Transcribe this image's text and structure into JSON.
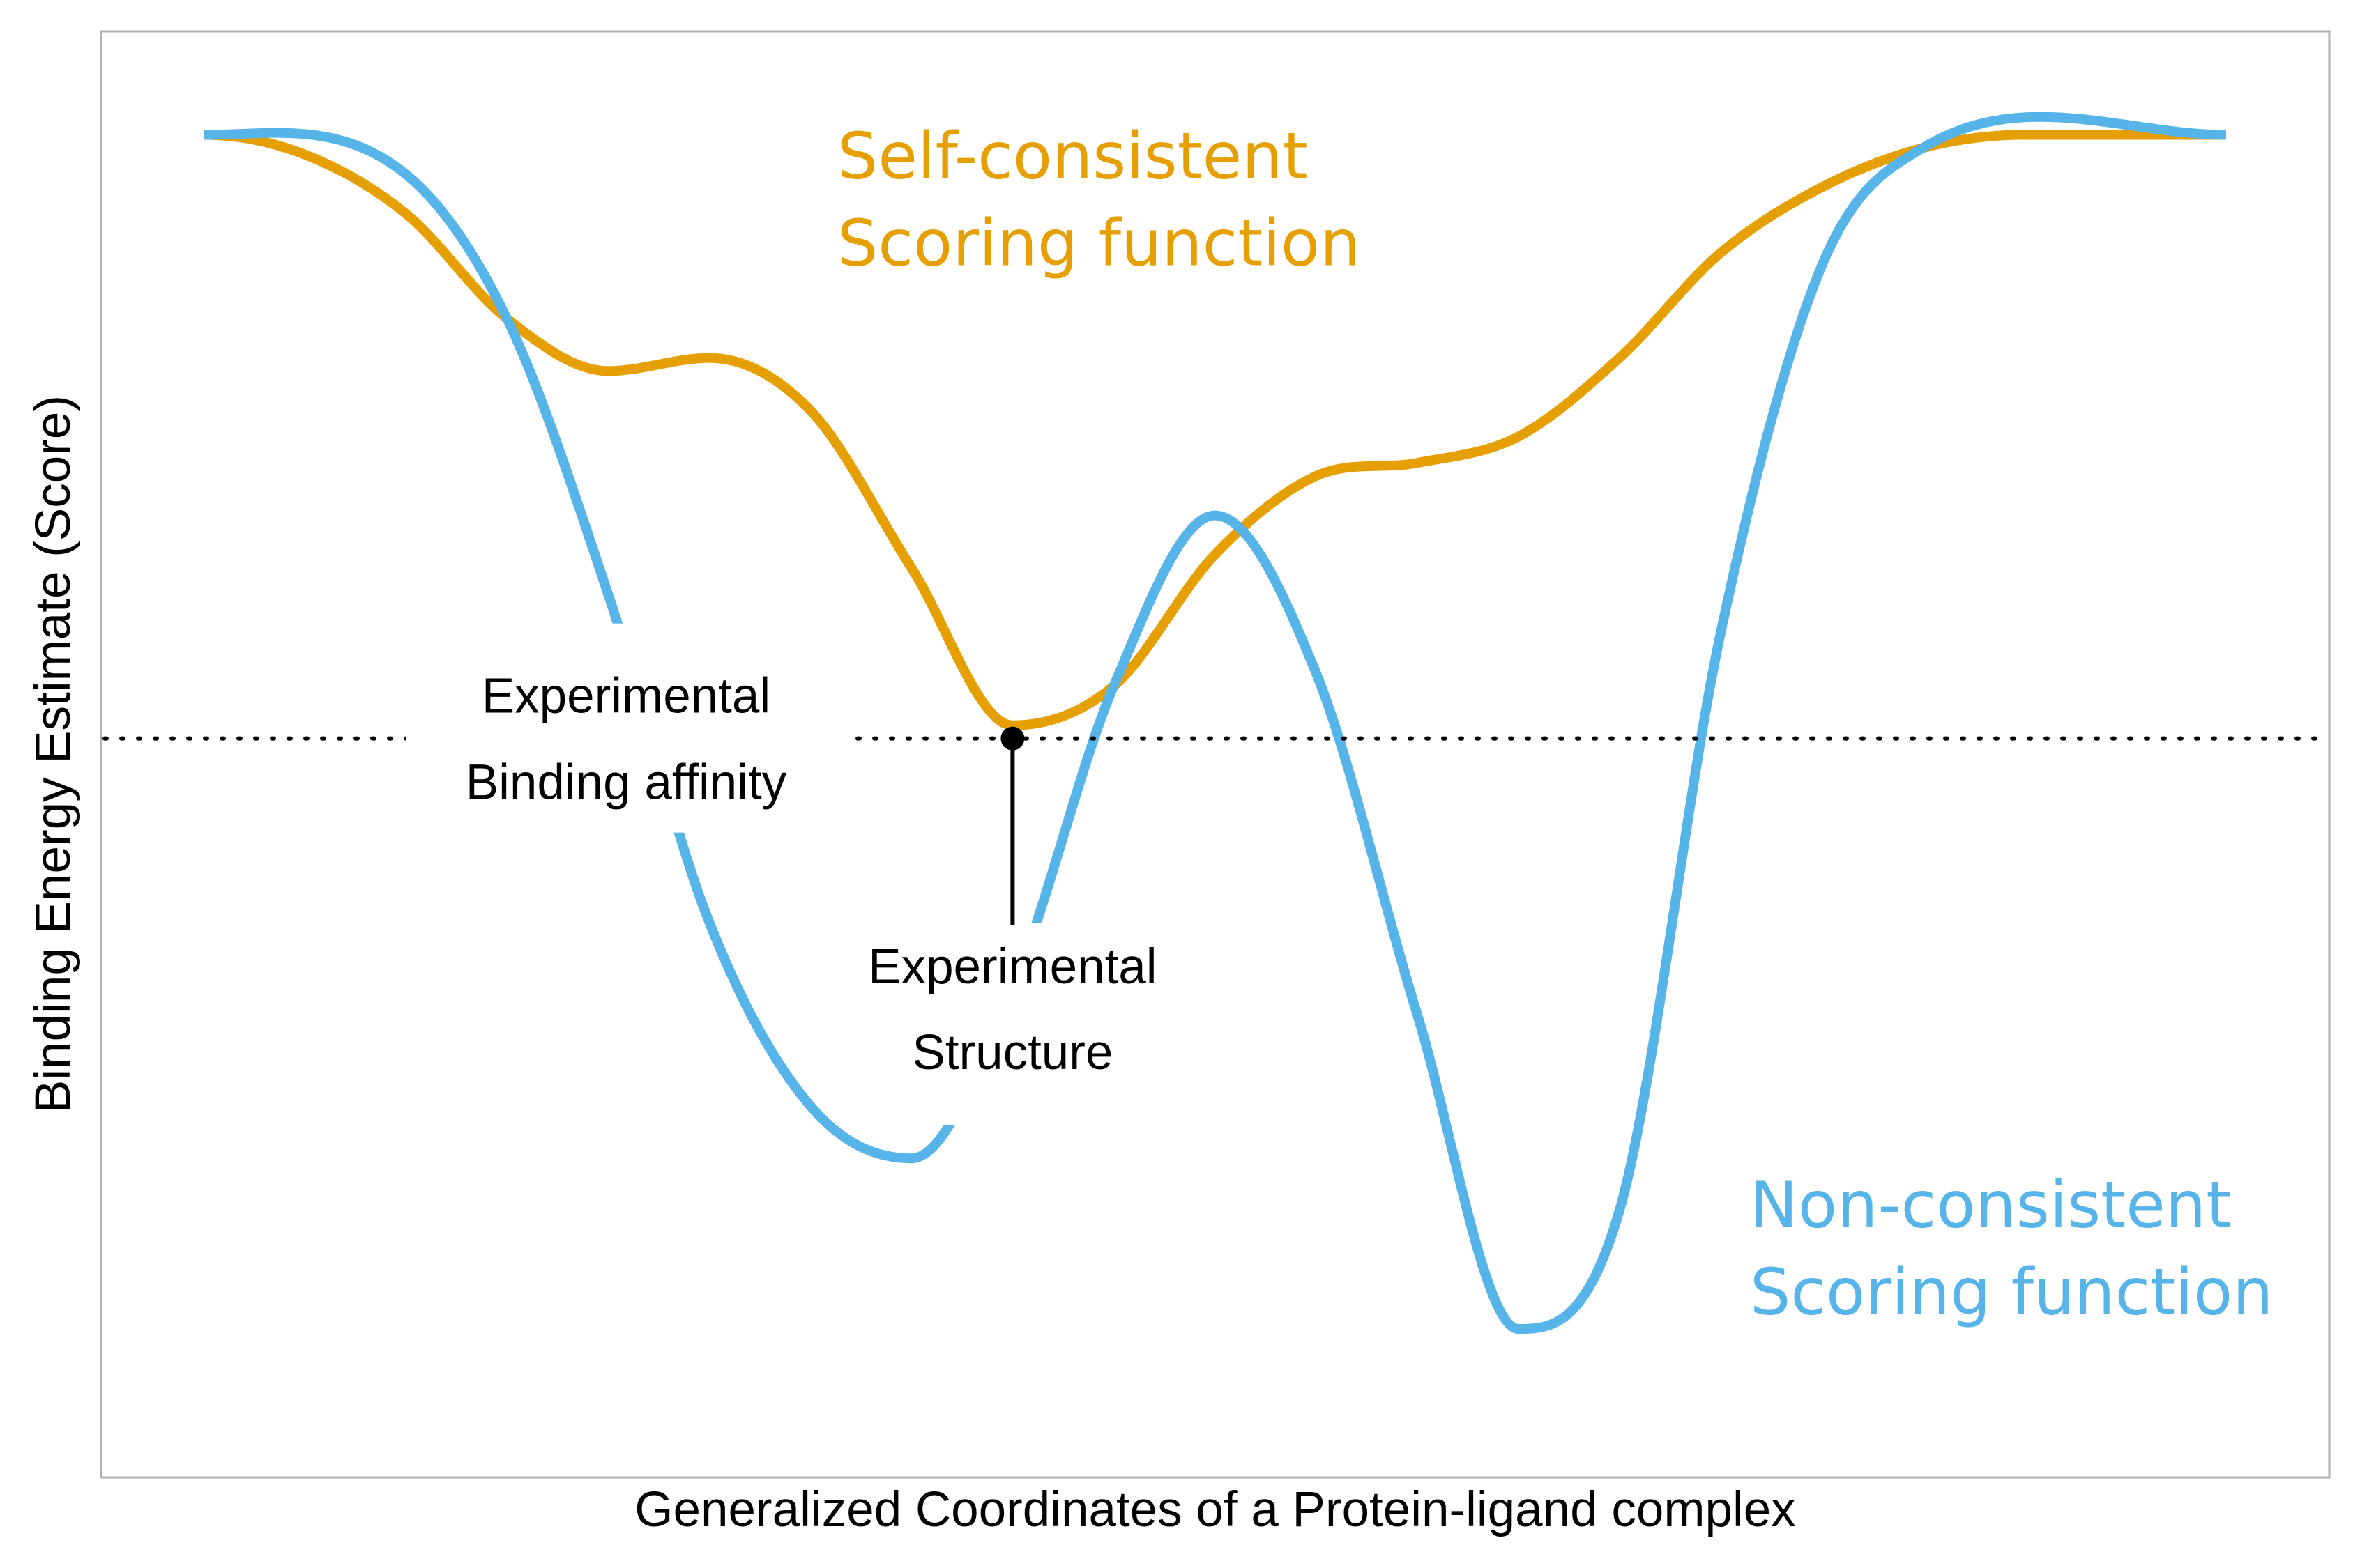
{
  "chart_data": {
    "type": "line",
    "title": "",
    "xlabel": "Generalized Coordinates of a Protein-ligand complex",
    "ylabel": "Binding Energy Estimate (Score)",
    "xlim": [
      0,
      1
    ],
    "ylim": [
      0,
      1
    ],
    "grid": false,
    "legend": "none",
    "series": [
      {
        "name": "Self-consistent Scoring function",
        "label_lines": [
          "Self-consistent",
          "Scoring function"
        ],
        "color": "#E69F00",
        "points": [
          [
            0.0,
            0.97
          ],
          [
            0.05,
            0.955
          ],
          [
            0.1,
            0.91
          ],
          [
            0.15,
            0.83
          ],
          [
            0.2,
            0.79
          ],
          [
            0.25,
            0.8
          ],
          [
            0.3,
            0.76
          ],
          [
            0.35,
            0.64
          ],
          [
            0.4,
            0.52
          ],
          [
            0.45,
            0.55
          ],
          [
            0.5,
            0.65
          ],
          [
            0.55,
            0.71
          ],
          [
            0.6,
            0.72
          ],
          [
            0.65,
            0.74
          ],
          [
            0.7,
            0.8
          ],
          [
            0.75,
            0.88
          ],
          [
            0.8,
            0.93
          ],
          [
            0.85,
            0.96
          ],
          [
            0.9,
            0.97
          ],
          [
            1.0,
            0.97
          ]
        ]
      },
      {
        "name": "Non-consistent Scoring function",
        "label_lines": [
          "Non-consistent",
          "Scoring function"
        ],
        "color": "#56B4E9",
        "points": [
          [
            0.0,
            0.97
          ],
          [
            0.1,
            0.94
          ],
          [
            0.15,
            0.83
          ],
          [
            0.2,
            0.62
          ],
          [
            0.25,
            0.37
          ],
          [
            0.3,
            0.23
          ],
          [
            0.35,
            0.19
          ],
          [
            0.4,
            0.32
          ],
          [
            0.45,
            0.55
          ],
          [
            0.5,
            0.68
          ],
          [
            0.55,
            0.56
          ],
          [
            0.6,
            0.3
          ],
          [
            0.65,
            0.06
          ],
          [
            0.7,
            0.15
          ],
          [
            0.75,
            0.59
          ],
          [
            0.8,
            0.87
          ],
          [
            0.85,
            0.96
          ],
          [
            1.0,
            0.97
          ]
        ]
      }
    ],
    "reference_line": {
      "label_lines": [
        "Experimental",
        "Binding affinity"
      ],
      "y": 0.51,
      "style": "dotted",
      "color": "#000000"
    },
    "marker": {
      "label_lines": [
        "Experimental",
        "Structure"
      ],
      "x": 0.4,
      "y": 0.51,
      "color": "#000000"
    }
  }
}
